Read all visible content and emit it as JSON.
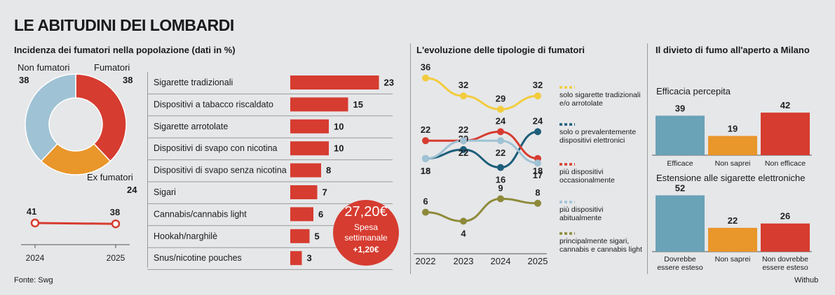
{
  "title": "LE ABITUDINI DEI LOMBARDI",
  "source": "Fonte: Swg",
  "credit": "Withub",
  "colors": {
    "red": "#d63c30",
    "blue": "#9fc2d5",
    "orange": "#e9962a",
    "yellow": "#f2cc3d",
    "teal": "#1d5e7a",
    "olive": "#8e8a3a",
    "steelblue": "#6aa2b8"
  },
  "chart_data": [
    {
      "type": "pie",
      "title": "Incidenza dei fumatori nella popolazione (dati in %)",
      "categories": [
        "Non fumatori",
        "Fumatori",
        "Ex fumatori"
      ],
      "values": [
        38,
        38,
        24
      ]
    },
    {
      "type": "line",
      "title": "",
      "x": [
        "2024",
        "2025"
      ],
      "series": [
        {
          "name": "Fumatori",
          "values": [
            41,
            38
          ]
        }
      ]
    },
    {
      "type": "bar",
      "title": "",
      "categories": [
        "Sigarette tradizionali",
        "Dispositivi a tabacco riscaldato",
        "Sigarette arrotolate",
        "Dispositivi di svapo con nicotina",
        "Dispositivi di svapo senza nicotina",
        "Sigari",
        "Cannabis/cannabis light",
        "Hookah/narghilè",
        "Snus/nicotine pouches"
      ],
      "values": [
        23,
        15,
        10,
        10,
        8,
        7,
        6,
        5,
        3
      ]
    },
    {
      "type": "line",
      "title": "L'evoluzione delle tipologie di fumatori",
      "x": [
        "2022",
        "2023",
        "2024",
        "2025"
      ],
      "ylim": [
        0,
        40
      ],
      "series": [
        {
          "name": "solo sigarette tradizionali e/o arrotolate",
          "values": [
            36,
            32,
            29,
            32
          ]
        },
        {
          "name": "solo o prevalentemente dispositivi elettronici",
          "values": [
            18,
            20,
            16,
            24
          ]
        },
        {
          "name": "più dispositivi occasionalmente",
          "values": [
            22,
            22,
            24,
            18
          ]
        },
        {
          "name": "più dispositivi abitualmente",
          "values": [
            18,
            22,
            22,
            17
          ]
        },
        {
          "name": "principalmente sigari, cannabis e cannabis light",
          "values": [
            6,
            4,
            9,
            8
          ]
        }
      ]
    },
    {
      "type": "bar",
      "title": "Efficacia percepita",
      "categories": [
        "Efficace",
        "Non saprei",
        "Non efficace"
      ],
      "values": [
        39,
        19,
        42
      ]
    },
    {
      "type": "bar",
      "title": "Estensione alle sigarette elettroniche",
      "categories": [
        "Dovrebbe essere esteso",
        "Non saprei",
        "Non dovrebbe essere esteso"
      ],
      "values": [
        52,
        22,
        26
      ]
    }
  ],
  "spesa": {
    "amount": "27,20€",
    "line1": "Spesa",
    "line2": "settimanale",
    "delta": "+1,20€"
  },
  "divieto": {
    "title": "Il divieto di fumo all'aperto a Milano"
  },
  "labels": {
    "efficace": "Efficace",
    "nonsaprei": "Non saprei",
    "nonefficace": "Non efficace",
    "dovrebbe1": "Dovrebbe",
    "dovrebbe2": "essere esteso",
    "nondovrebbe1": "Non dovrebbe",
    "nondovrebbe2": "essere esteso"
  },
  "legend": [
    [
      "solo sigarette tradizionali",
      "e/o arrotolate"
    ],
    [
      "solo o prevalentemente",
      "dispositivi elettronici"
    ],
    [
      "più dispositivi",
      "occasionalmente"
    ],
    [
      "più dispositivi",
      "abitualmente"
    ],
    [
      "principalmente sigari,",
      "cannabis e cannabis light"
    ]
  ]
}
